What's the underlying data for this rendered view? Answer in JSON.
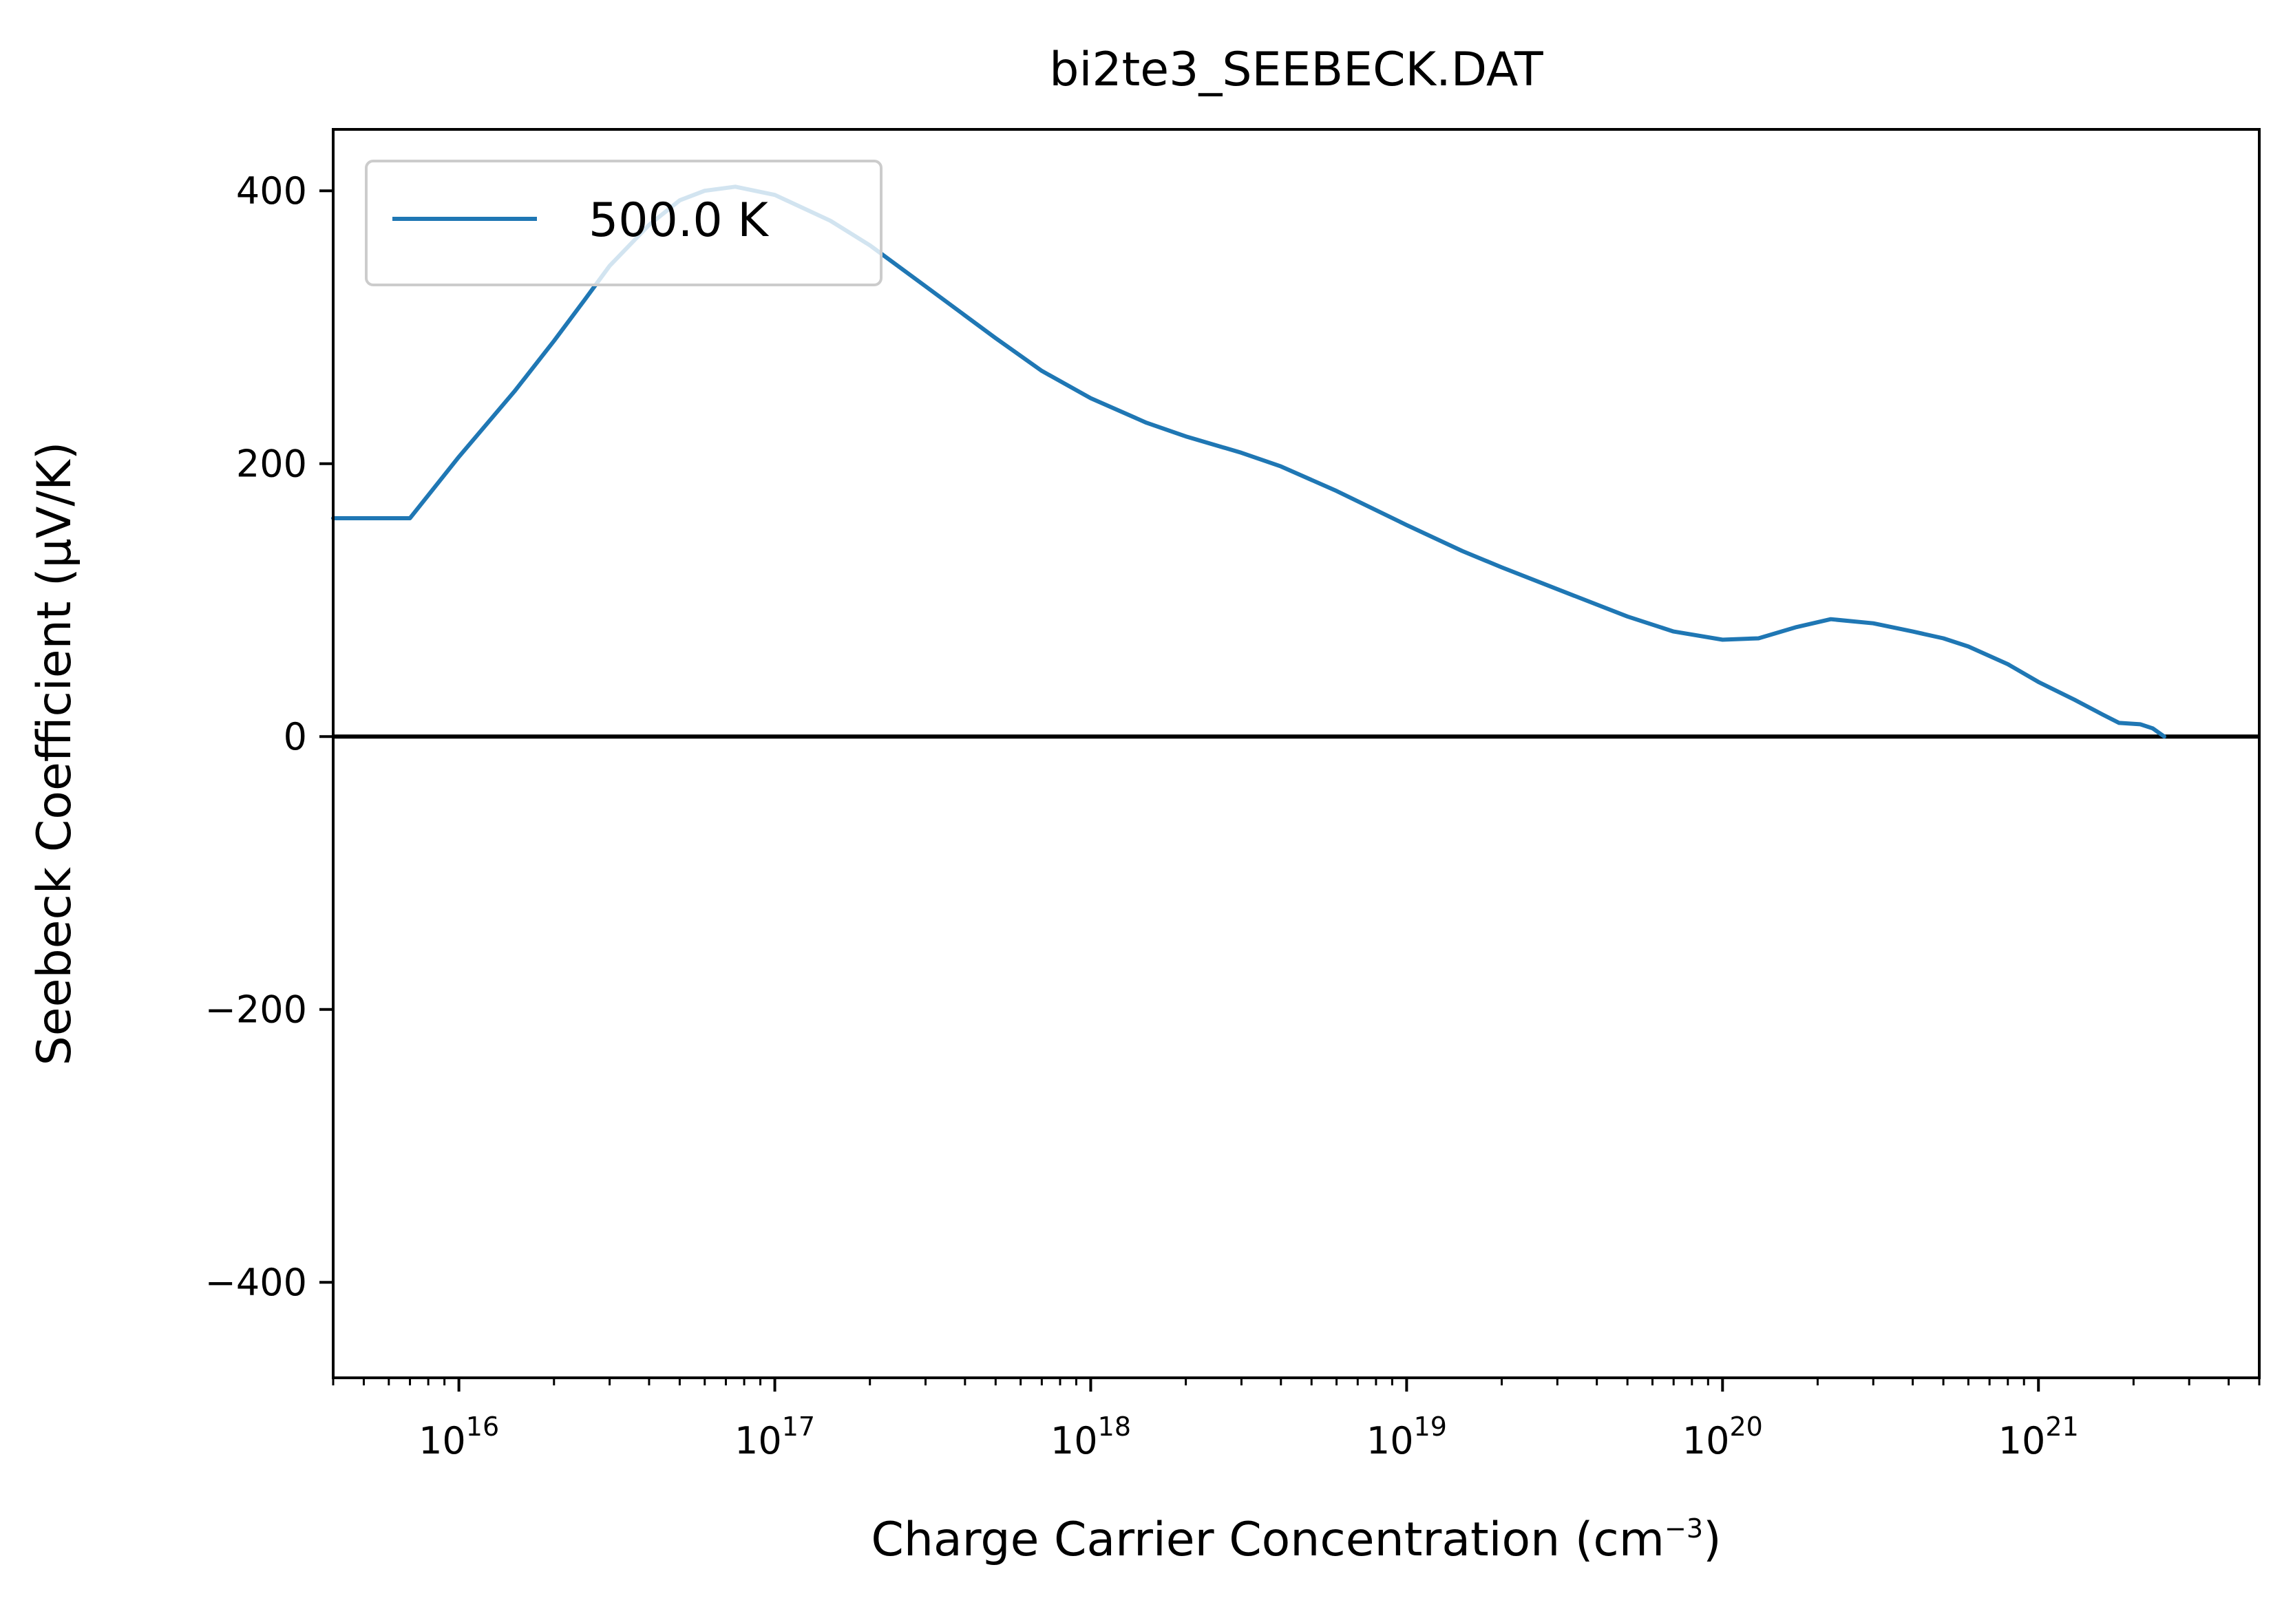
{
  "chart_data": {
    "type": "line",
    "title": "bi2te3_SEEBECK.DAT",
    "xlabel": "Charge Carrier Concentration (cm",
    "xlabel_exponent": "−3",
    "xlabel_suffix": ")",
    "ylabel": "Seebeck Coefficient (μV/K)",
    "xscale": "log",
    "xlim": [
      4000000000000000.0,
      5e+21
    ],
    "ylim": [
      -470,
      445
    ],
    "y_ticks": [
      -400,
      -200,
      0,
      200,
      400
    ],
    "y_tick_labels": [
      "−400",
      "−200",
      "0",
      "200",
      "400"
    ],
    "x_ticks": [
      1e+16,
      1e+17,
      1e+18,
      1e+19,
      1e+20,
      1e+21
    ],
    "x_tick_labels": [
      {
        "base": "10",
        "exp": "16"
      },
      {
        "base": "10",
        "exp": "17"
      },
      {
        "base": "10",
        "exp": "18"
      },
      {
        "base": "10",
        "exp": "19"
      },
      {
        "base": "10",
        "exp": "20"
      },
      {
        "base": "10",
        "exp": "21"
      }
    ],
    "grid": false,
    "legend_position": "upper-left",
    "zero_line": true,
    "series": [
      {
        "name": "500.0 K",
        "color": "#1f77b4",
        "x": [
          4000000000000000.0,
          5500000000000000.0,
          7000000000000000.0,
          1e+16,
          1.5e+16,
          2e+16,
          2.5e+16,
          3e+16,
          4e+16,
          5e+16,
          6e+16,
          7.5e+16,
          1e+17,
          1.5e+17,
          2e+17,
          3e+17,
          5e+17,
          7e+17,
          1e+18,
          1.5e+18,
          2e+18,
          3e+18,
          4e+18,
          6e+18,
          1e+19,
          1.5e+19,
          2e+19,
          3e+19,
          5e+19,
          7e+19,
          1e+20,
          1.3e+20,
          1.7e+20,
          2.2e+20,
          3e+20,
          4e+20,
          5e+20,
          6e+20,
          8e+20,
          1e+21,
          1.3e+21,
          1.6e+21,
          1.8e+21,
          2.1e+21,
          2.3e+21,
          2.5e+21
        ],
        "y": [
          160,
          160,
          160,
          205,
          253,
          290,
          320,
          345,
          375,
          393,
          400,
          403,
          397,
          378,
          360,
          330,
          292,
          268,
          248,
          230,
          220,
          208,
          198,
          180,
          155,
          136,
          124,
          108,
          88,
          77,
          71,
          72,
          80,
          86,
          83,
          77,
          72,
          66,
          53,
          40,
          27,
          16,
          10,
          9,
          6,
          0
        ]
      }
    ]
  }
}
